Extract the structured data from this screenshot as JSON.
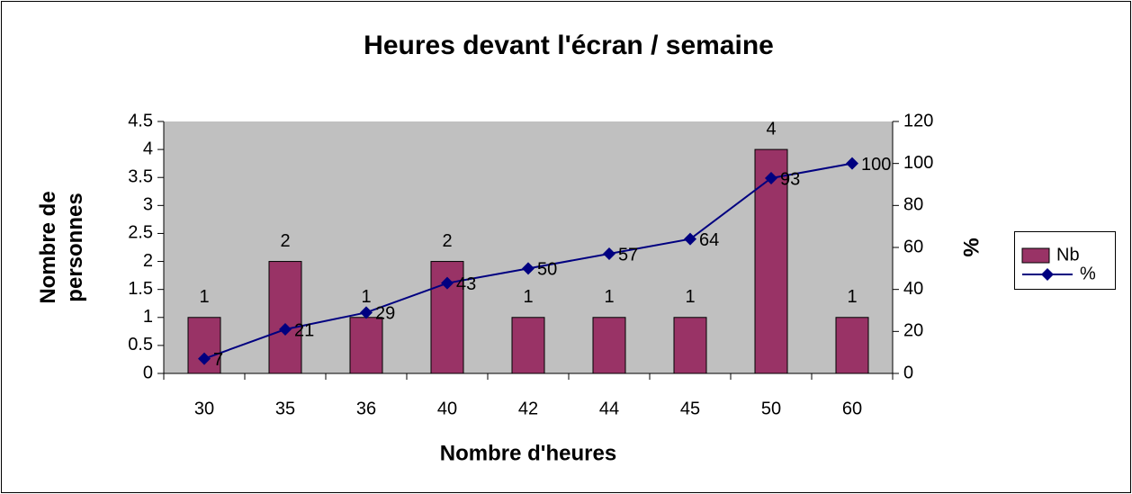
{
  "chart_data": {
    "type": "bar",
    "title": "Heures devant l'écran / semaine",
    "x_label": "Nombre d'heures",
    "y_label": "Nombre de personnes",
    "y2_label": "%",
    "categories": [
      "30",
      "35",
      "36",
      "40",
      "42",
      "44",
      "45",
      "50",
      "60"
    ],
    "series": [
      {
        "name": "Nb",
        "type": "bar",
        "color": "#993366",
        "values": [
          1,
          2,
          1,
          2,
          1,
          1,
          1,
          4,
          1
        ]
      },
      {
        "name": "%",
        "type": "line",
        "color": "#000080",
        "axis": "y2",
        "values": [
          7,
          21,
          29,
          43,
          50,
          57,
          64,
          93,
          100
        ]
      }
    ],
    "ylim": [
      0,
      4.5
    ],
    "yticks": [
      0,
      0.5,
      1,
      1.5,
      2,
      2.5,
      3,
      3.5,
      4,
      4.5
    ],
    "y2lim": [
      0,
      120
    ],
    "y2ticks": [
      0,
      20,
      40,
      60,
      80,
      100,
      120
    ],
    "plot_background": "#c0c0c0",
    "grid": false,
    "legend": "right"
  }
}
